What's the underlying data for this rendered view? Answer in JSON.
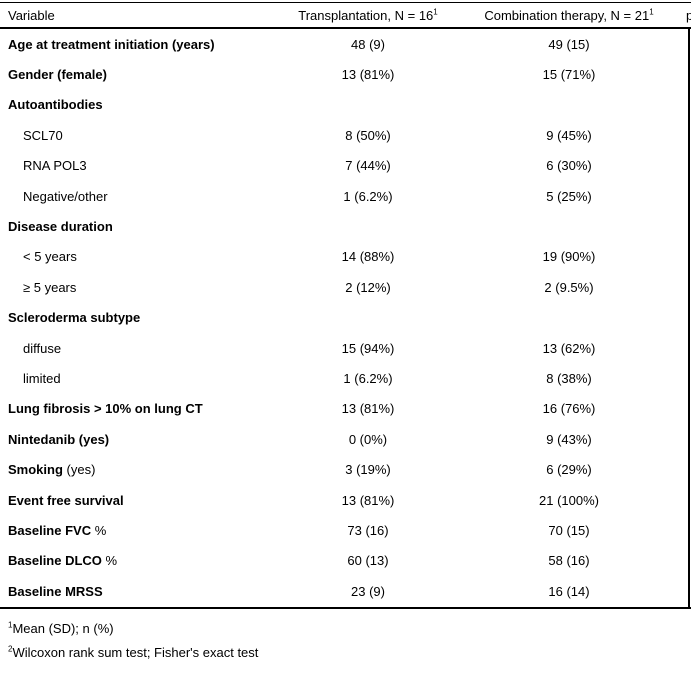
{
  "table": {
    "header": {
      "variable": "Variable",
      "group1": "Transplantation, N = 16",
      "group1_sup": "1",
      "group2": "Combination therapy, N = 21",
      "group2_sup": "1",
      "p_clipped": "p"
    },
    "rows": [
      {
        "label": "Age at treatment initiation (years)",
        "bold": true,
        "indent": false,
        "v1": "48 (9)",
        "v2": "49 (15)"
      },
      {
        "label": "Gender (female)",
        "bold": true,
        "indent": false,
        "v1": "13 (81%)",
        "v2": "15 (71%)"
      },
      {
        "label": "Autoantibodies",
        "bold": true,
        "indent": false,
        "v1": "",
        "v2": ""
      },
      {
        "label": "SCL70",
        "bold": false,
        "indent": true,
        "v1": "8 (50%)",
        "v2": "9 (45%)"
      },
      {
        "label": "RNA POL3",
        "bold": false,
        "indent": true,
        "v1": "7 (44%)",
        "v2": "6 (30%)"
      },
      {
        "label": "Negative/other",
        "bold": false,
        "indent": true,
        "v1": "1 (6.2%)",
        "v2": "5 (25%)"
      },
      {
        "label": "Disease duration",
        "bold": true,
        "indent": false,
        "v1": "",
        "v2": ""
      },
      {
        "label": "< 5 years",
        "bold": false,
        "indent": true,
        "v1": "14 (88%)",
        "v2": "19 (90%)"
      },
      {
        "label": "≥ 5 years",
        "bold": false,
        "indent": true,
        "v1": "2 (12%)",
        "v2": "2 (9.5%)"
      },
      {
        "label": "Scleroderma subtype",
        "bold": true,
        "indent": false,
        "v1": "",
        "v2": ""
      },
      {
        "label": "diffuse",
        "bold": false,
        "indent": true,
        "v1": "15 (94%)",
        "v2": "13 (62%)"
      },
      {
        "label": "limited",
        "bold": false,
        "indent": true,
        "v1": "1 (6.2%)",
        "v2": "8 (38%)"
      },
      {
        "label": "Lung fibrosis > 10% on lung CT",
        "bold": true,
        "indent": false,
        "v1": "13 (81%)",
        "v2": "16 (76%)"
      },
      {
        "label": "Nintedanib (yes)",
        "bold": true,
        "indent": false,
        "v1": "0 (0%)",
        "v2": "9 (43%)"
      },
      {
        "label": "Smoking",
        "suffix": " (yes)",
        "bold": true,
        "indent": false,
        "v1": "3 (19%)",
        "v2": "6 (29%)"
      },
      {
        "label": "Event free survival",
        "bold": true,
        "indent": false,
        "v1": "13 (81%)",
        "v2": "21 (100%)"
      },
      {
        "label": "Baseline FVC",
        "suffix": " %",
        "bold": true,
        "indent": false,
        "v1": "73 (16)",
        "v2": "70 (15)"
      },
      {
        "label": "Baseline DLCO",
        "suffix": " %",
        "bold": true,
        "indent": false,
        "v1": "60 (13)",
        "v2": "58 (16)"
      },
      {
        "label": "Baseline MRSS",
        "bold": true,
        "indent": false,
        "v1": "23 (9)",
        "v2": "16 (14)"
      }
    ],
    "footnotes": [
      {
        "sup": "1",
        "text": "Mean (SD); n (%)"
      },
      {
        "sup": "2",
        "text": "Wilcoxon rank sum test; Fisher's exact test"
      }
    ],
    "colors": {
      "text": "#000000",
      "background": "#ffffff",
      "rule": "#000000"
    }
  }
}
